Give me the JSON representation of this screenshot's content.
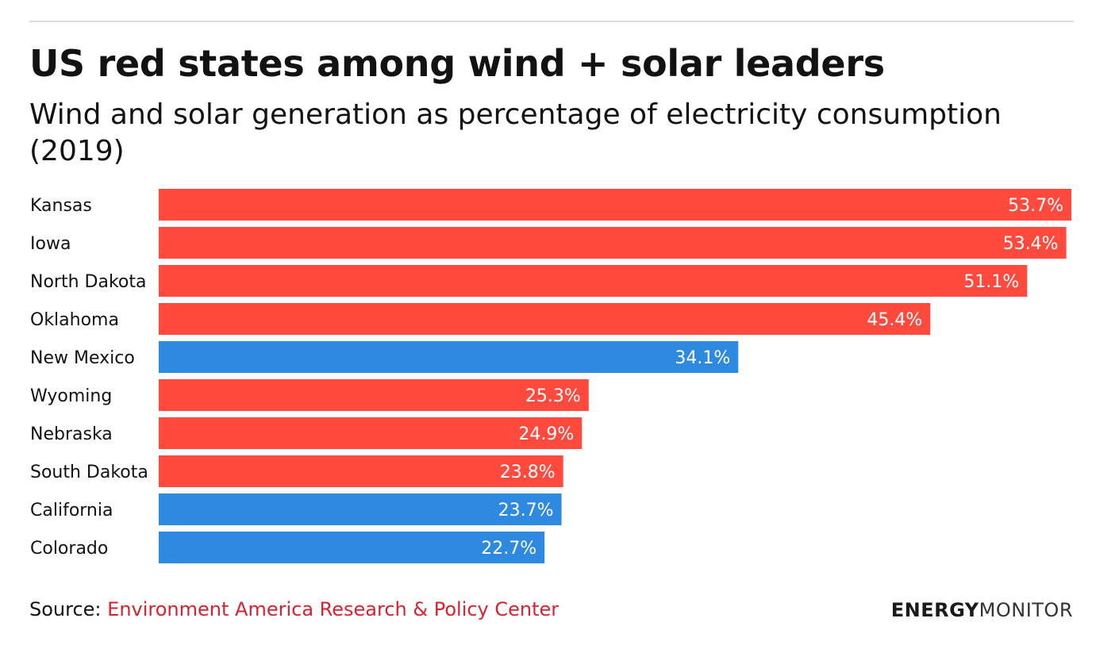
{
  "header": {
    "title": "US red states among wind + solar leaders",
    "subtitle": "Wind and solar generation as percentage of electricity consumption (2019)"
  },
  "footer": {
    "source_label": "Source: ",
    "source_name": "Environment America Research & Policy Center",
    "brand_bold": "ENERGY",
    "brand_light": "MONITOR"
  },
  "colors": {
    "red_state": "#ff4a3d",
    "blue_state": "#2e89e0",
    "source_link": "#d9212f"
  },
  "chart_data": {
    "type": "bar",
    "orientation": "horizontal",
    "categories": [
      "Kansas",
      "Iowa",
      "North Dakota",
      "Oklahoma",
      "New Mexico",
      "Wyoming",
      "Nebraska",
      "South Dakota",
      "California",
      "Colorado"
    ],
    "values": [
      53.7,
      53.4,
      51.1,
      45.4,
      34.1,
      25.3,
      24.9,
      23.8,
      23.7,
      22.7
    ],
    "labels": [
      "53.7%",
      "53.4%",
      "51.1%",
      "45.4%",
      "34.1%",
      "25.3%",
      "24.9%",
      "23.8%",
      "23.7%",
      "22.7%"
    ],
    "party": [
      "red",
      "red",
      "red",
      "red",
      "blue",
      "red",
      "red",
      "red",
      "blue",
      "blue"
    ],
    "xlim": [
      0,
      53.7
    ],
    "grid": false,
    "title": "US red states among wind + solar leaders",
    "subtitle": "Wind and solar generation as percentage of electricity consumption (2019)",
    "xlabel": "",
    "ylabel": ""
  }
}
